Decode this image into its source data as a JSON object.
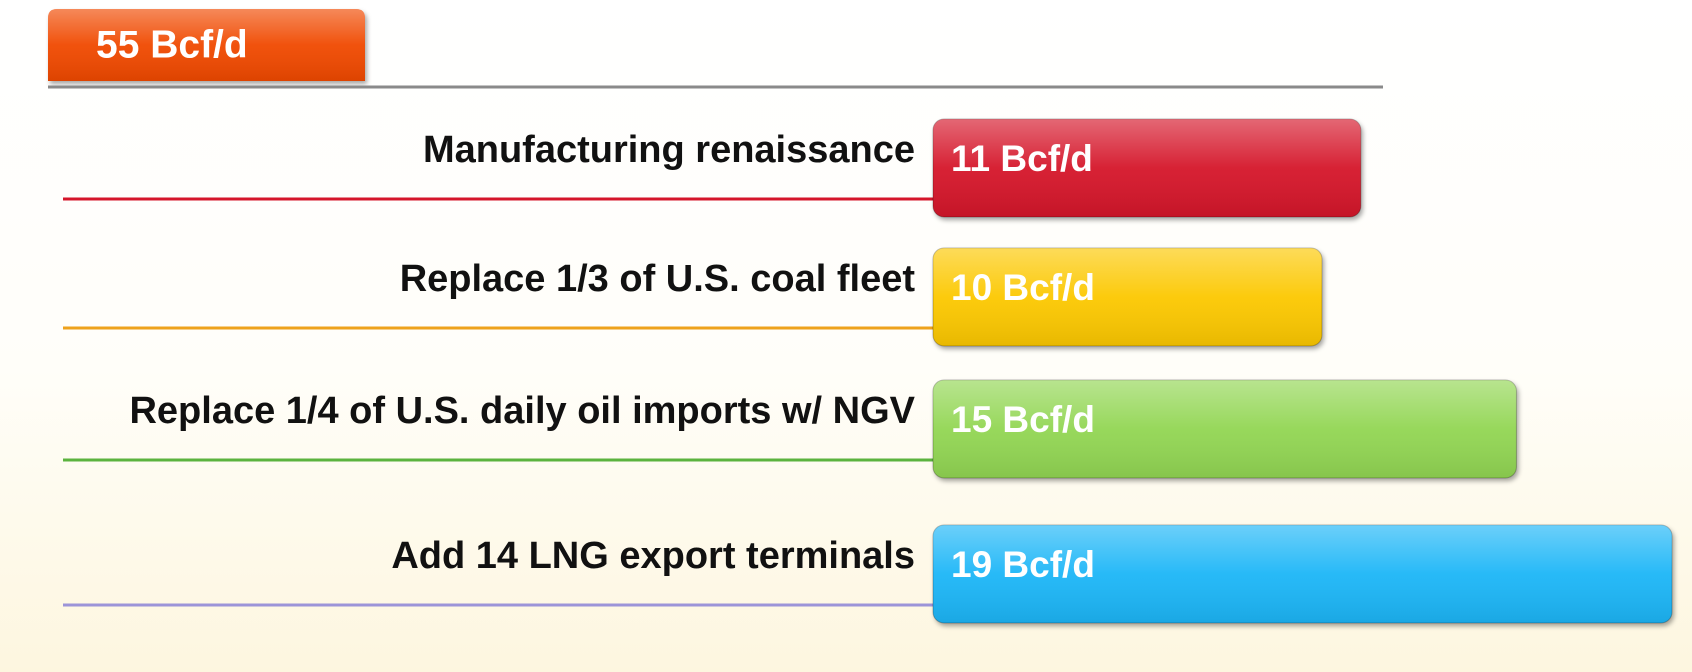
{
  "chart_data": {
    "type": "bar",
    "total": {
      "value": 55,
      "label": "55 Bcf/d"
    },
    "categories": [
      "Manufacturing renaissance",
      "Replace 1/3 of U.S. coal fleet",
      "Replace 1/4 of U.S. daily oil imports w/ NGV",
      "Add 14 LNG export terminals"
    ],
    "values": [
      11,
      10,
      15,
      19
    ],
    "value_labels": [
      "11 Bcf/d",
      "10 Bcf/d",
      "15 Bcf/d",
      "19 Bcf/d"
    ],
    "colors": [
      "#d5152a",
      "#fcc800",
      "#92d653",
      "#1cb6f7"
    ],
    "line_colors": [
      "#d5152a",
      "#eea21c",
      "#5bb33e",
      "#9c94d8"
    ]
  }
}
